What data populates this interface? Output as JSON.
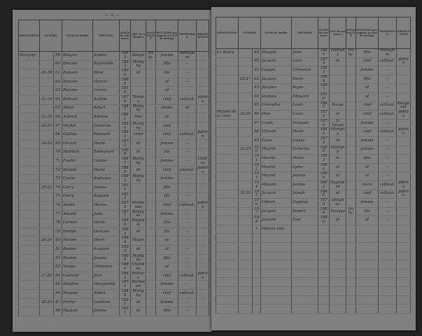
{
  "headers": {
    "designation": "DÉSIGNATION",
    "numero": "NUMÉRO",
    "noms": "NOMS de famille",
    "prenoms": "PRÉNOMS",
    "annee": "ANNÉE de naissance",
    "lieu": "LIEU de naissance",
    "nationalite": "NATIONALITÉ",
    "situation": "SITUATION par rapport au chef de ménage",
    "profession": "PROFESSION",
    "observations": "OBSERVATIONS"
  },
  "left_page": {
    "folio": "— 4 —",
    "rows": [
      [
        "Marigny",
        "",
        "59",
        "Bougon",
        "Sophie",
        "1853",
        "Bougé",
        "franç.",
        "femme",
        "ménagère",
        ""
      ],
      [
        "",
        "",
        "60",
        "Boisson",
        "Raymonde",
        "1902",
        "Marigny",
        "",
        "fille",
        "—",
        ""
      ],
      [
        "",
        "20-18",
        "61",
        "Boisson",
        "René",
        "1906",
        "id",
        "",
        "fils",
        "—",
        ""
      ],
      [
        "",
        "",
        "62",
        "Boisson",
        "Marcel",
        "1908",
        "",
        "",
        "id",
        "—",
        ""
      ],
      [
        "",
        "",
        "63",
        "Boisson",
        "Lucien",
        "1910",
        "",
        "",
        "id",
        "—",
        ""
      ],
      [
        "",
        "21-19",
        "64",
        "Boisson",
        "Achille",
        "1878",
        "Tonnay",
        "",
        "chef",
        "cultivat.",
        "patron"
      ],
      [
        "",
        "",
        "65",
        "Allain",
        "Albert",
        "1887",
        "Marigny",
        "",
        "neveu",
        "id",
        ""
      ],
      [
        "",
        "22-20",
        "66",
        "Aubriot",
        "Adeline",
        "1861",
        "Poix",
        "",
        "id",
        "—",
        ""
      ],
      [
        "",
        "23-21",
        "67",
        "Michel",
        "Victorine",
        "1864",
        "Marigny",
        "",
        "chef",
        "—",
        ""
      ],
      [
        "",
        "",
        "68",
        "Guillon",
        "Edouard",
        "1866",
        "Oriol",
        "",
        "chef",
        "cultivat.",
        "patron"
      ],
      [
        "",
        "24-22",
        "69",
        "Gérard",
        "Marie",
        "1872",
        "id",
        "",
        "femme",
        "—",
        ""
      ],
      [
        "",
        "",
        "70",
        "Marillon",
        "Emmanuel",
        "1906",
        "id",
        "",
        "fils",
        "—",
        ""
      ],
      [
        "",
        "",
        "71",
        "Fradin",
        "Léonie",
        "1867",
        "Marigny",
        "",
        "femme",
        "—",
        "Guillou"
      ],
      [
        "",
        "",
        "72",
        "Roland",
        "Marie",
        "1889",
        "id",
        "",
        "chef",
        "journal.",
        "patron"
      ],
      [
        "",
        "",
        "73",
        "Gaune",
        "Alphonse",
        "1893",
        "Marigny",
        "",
        "femme",
        "—",
        ""
      ],
      [
        "",
        "25-23",
        "74",
        "Garry",
        "Jeanne",
        "1910",
        "",
        "",
        "fille",
        "—",
        ""
      ],
      [
        "",
        "",
        "75",
        "Garry",
        "Auguste",
        "1912",
        "",
        "",
        "fils",
        "—",
        ""
      ],
      [
        "",
        "",
        "76",
        "Abelin",
        "Marius",
        "1874",
        "Marnande",
        "",
        "chef",
        "cultivat.",
        "patron"
      ],
      [
        "",
        "",
        "77",
        "Amand",
        "Julie",
        "1877",
        "Bourges",
        "",
        "femme",
        "—",
        ""
      ],
      [
        "",
        "",
        "78",
        "Garnier",
        "Marie",
        "1896",
        "Maganié",
        "",
        "fille",
        "—",
        ""
      ],
      [
        "",
        "",
        "79",
        "Bonnet",
        "Georges",
        "1902",
        "id",
        "",
        "fils",
        "—",
        ""
      ],
      [
        "",
        "26-24",
        "80",
        "Bonnet",
        "Henri",
        "1904",
        "Migon",
        "",
        "id",
        "—",
        ""
      ],
      [
        "",
        "",
        "81",
        "Bonnet",
        "Auguste",
        "1906",
        "id",
        "",
        "id",
        "—",
        ""
      ],
      [
        "",
        "",
        "82",
        "Bonnet",
        "Jeanne",
        "1909",
        "Marigny",
        "",
        "fille",
        "—",
        ""
      ],
      [
        "",
        "",
        "83",
        "Vergez",
        "Clémence",
        "1894",
        "Chandon",
        "",
        "id",
        "—",
        ""
      ],
      [
        "",
        "27-25",
        "84",
        "Guérard",
        "Jean",
        "1862",
        "Poitiers",
        "",
        "chef",
        "cultivat.",
        "patron"
      ],
      [
        "",
        "",
        "85",
        "Bouillon",
        "Marguerite",
        "1872",
        "Rochefort",
        "",
        "femme",
        "—",
        ""
      ],
      [
        "",
        "",
        "86",
        "Maquet",
        "Albert",
        "1888",
        "Marigny",
        "",
        "chef",
        "cultivat.",
        ""
      ],
      [
        "",
        "28-26",
        "87",
        "Fortier",
        "Léontine",
        "1891",
        "id",
        "",
        "femme",
        "—",
        ""
      ],
      [
        "",
        "",
        "88",
        "Maquet",
        "Jeanne",
        "1911",
        "id",
        "",
        "fille",
        "—",
        ""
      ]
    ]
  },
  "right_page": {
    "folio": "",
    "rows": [
      [
        "Le Bourg",
        "",
        "89",
        "Maquet",
        "Jules",
        "1880",
        "Marigny",
        "franç.",
        "fille",
        "ménagère",
        ""
      ],
      [
        "",
        "",
        "90",
        "Jacques",
        "Léon",
        "1873",
        "id",
        "",
        "chef",
        "cultivat.",
        "patron"
      ],
      [
        "",
        "",
        "91",
        "Gauget",
        "Clémence",
        "1883",
        "",
        "",
        "femme",
        "—",
        ""
      ],
      [
        "",
        "29-27",
        "92",
        "Jacques",
        "Henri",
        "1908",
        "",
        "",
        "fille",
        "—",
        ""
      ],
      [
        "",
        "",
        "93",
        "Jacques",
        "Roger",
        "1907",
        "",
        "",
        "id",
        "—",
        ""
      ],
      [
        "",
        "",
        "94",
        "Jacques",
        "Édouard",
        "1910",
        "",
        "",
        "id",
        "—",
        ""
      ],
      [
        "",
        "",
        "95",
        "Grenadier",
        "Louis",
        "1860",
        "Bougé",
        "",
        "chef",
        "cultivat.",
        "Baugeant"
      ],
      [
        "Maison de la Cure",
        "30-28",
        "96",
        "Men",
        "Louis",
        "1872",
        "id",
        "",
        "chef",
        "cultivat.",
        "patron"
      ],
      [
        "",
        "",
        "97",
        "Canet",
        "François",
        "1876",
        "St Vaugé",
        "",
        "femme",
        "—",
        ""
      ],
      [
        "",
        "",
        "98",
        "Vincent",
        "Marie",
        "1866",
        "Marigny",
        "",
        "chef",
        "cultivat.",
        "patron"
      ],
      [
        "",
        "",
        "99",
        "Faure",
        "Louise",
        "1878",
        "id",
        "",
        "femme",
        "—",
        ""
      ],
      [
        "",
        "31-29",
        "100",
        "Mauret",
        "Victorine",
        "1880",
        "Marigny",
        "",
        "femme",
        "—",
        ""
      ],
      [
        "",
        "",
        "101",
        "Mauret",
        "Marie",
        "1903",
        "id",
        "",
        "fille",
        "—",
        ""
      ],
      [
        "",
        "",
        "102",
        "Mauret",
        "Lydie",
        "1906",
        "id",
        "",
        "id",
        "—",
        ""
      ],
      [
        "",
        "",
        "103",
        "Mauret",
        "Jeanne",
        "1909",
        "id",
        "",
        "id",
        "—",
        ""
      ],
      [
        "",
        "",
        "104",
        "Mézard",
        "Jeanne",
        "1862",
        "Augouard",
        "",
        "mère",
        "cultivat.",
        "patron"
      ],
      [
        "",
        "32-30",
        "105",
        "Jacquin",
        "Joseph",
        "1860",
        "id",
        "",
        "chef",
        "cultivat.",
        "patron"
      ],
      [
        "",
        "",
        "106",
        "Gilbert",
        "Eugénie",
        "1870",
        "Lézignac",
        "",
        "femme",
        "—",
        ""
      ],
      [
        "",
        "",
        "107",
        "Jacquin",
        "Robert",
        "1896",
        "Poulaye",
        "franç.",
        "fils",
        "—",
        ""
      ],
      [
        "",
        "",
        "108",
        "Jacquin",
        "Paul",
        "1900",
        "id",
        "",
        "id",
        "—",
        ""
      ],
      [
        "",
        "",
        "1",
        "Maison vide",
        "",
        "",
        "",
        "",
        "",
        "",
        ""
      ],
      [
        "",
        "",
        "",
        "",
        "",
        "",
        "",
        "",
        "",
        "",
        ""
      ],
      [
        "",
        "",
        "",
        "",
        "",
        "",
        "",
        "",
        "",
        "",
        ""
      ],
      [
        "",
        "",
        "",
        "",
        "",
        "",
        "",
        "",
        "",
        "",
        ""
      ],
      [
        "",
        "",
        "",
        "",
        "",
        "",
        "",
        "",
        "",
        "",
        ""
      ],
      [
        "",
        "",
        "",
        "",
        "",
        "",
        "",
        "",
        "",
        "",
        ""
      ],
      [
        "",
        "",
        "",
        "",
        "",
        "",
        "",
        "",
        "",
        "",
        ""
      ],
      [
        "",
        "",
        "",
        "",
        "",
        "",
        "",
        "",
        "",
        "",
        ""
      ],
      [
        "",
        "",
        "",
        "",
        "",
        "",
        "",
        "",
        "",
        "",
        ""
      ],
      [
        "",
        "",
        "",
        "",
        "",
        "",
        "",
        "",
        "",
        "",
        ""
      ]
    ]
  }
}
